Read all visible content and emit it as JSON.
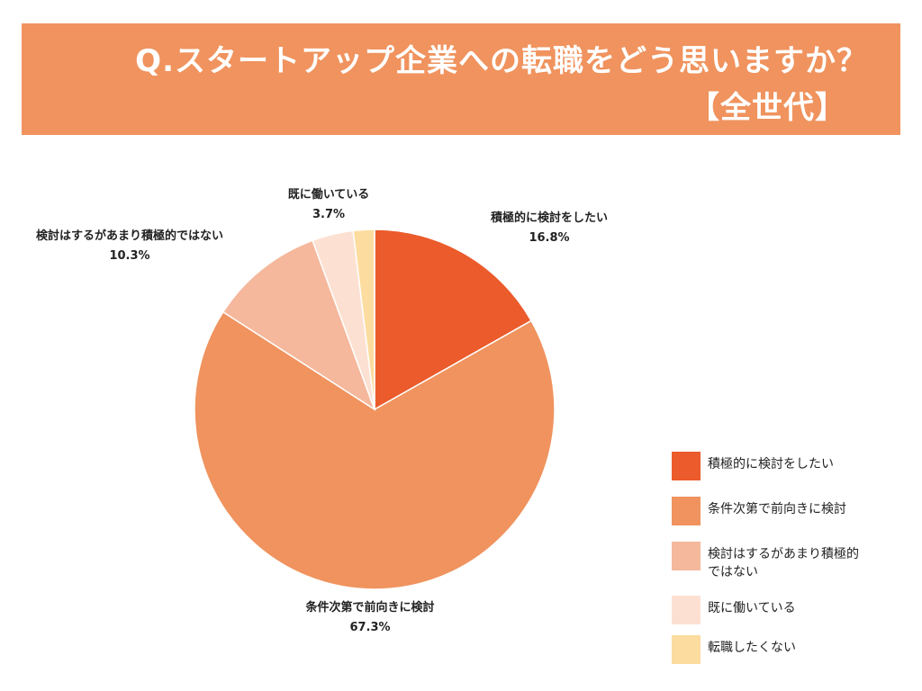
{
  "title": {
    "line1": "Q.スタートアップ企業への転職をどう思いますか？",
    "line2": "【全世代】"
  },
  "colors": {
    "banner": "#f0935e",
    "title_text": "#ffffff"
  },
  "chart_data": {
    "type": "pie",
    "title": "Q.スタートアップ企業への転職をどう思いますか？【全世代】",
    "start_angle": "12 o'clock, clockwise",
    "legend_position": "bottom-right",
    "slices": [
      {
        "label": "積極的に検討をしたい",
        "value": 16.8,
        "value_label": "16.8%",
        "color": "#eb5b2b"
      },
      {
        "label": "条件次第で前向きに検討",
        "value": 67.3,
        "value_label": "67.3%",
        "color": "#f0935e"
      },
      {
        "label": "検討はするがあまり積極的ではない",
        "value": 10.3,
        "value_label": "10.3%",
        "color": "#f5b89c"
      },
      {
        "label": "既に働いている",
        "value": 3.7,
        "value_label": "3.7%",
        "color": "#fce1d2"
      },
      {
        "label": "転職したくない",
        "value": 1.9,
        "value_label": "",
        "color": "#fddc9f"
      }
    ],
    "legend": [
      {
        "label": "積極的に検討をしたい",
        "color": "#eb5b2b"
      },
      {
        "label": "条件次第で前向きに検討",
        "color": "#f0935e"
      },
      {
        "label": "検討はするがあまり積極的ではない",
        "color": "#f5b89c"
      },
      {
        "label": "既に働いている",
        "color": "#fce1d2"
      },
      {
        "label": "転職したくない",
        "color": "#fddc9f"
      }
    ]
  }
}
